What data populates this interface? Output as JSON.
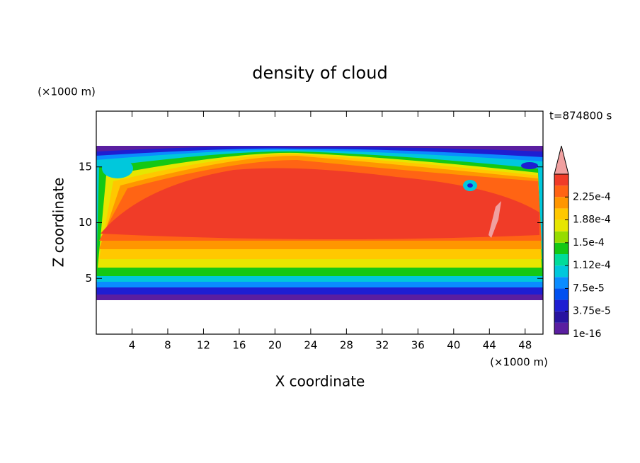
{
  "chart_data": {
    "type": "contour",
    "title": "density of cloud",
    "xlabel": "X coordinate",
    "ylabel": "Z coordinate",
    "xunit": "(×1000 m)",
    "yunit": "(×1000 m)",
    "annotation": "t=874800 s",
    "xlim": [
      0,
      50
    ],
    "xticks": [
      4,
      8,
      12,
      16,
      20,
      24,
      28,
      32,
      36,
      40,
      44,
      48
    ],
    "ylim": [
      0,
      20
    ],
    "yticks": [
      5,
      10,
      15
    ],
    "clim": [
      1e-16,
      0.0002625
    ],
    "cticks": [
      {
        "value": 1e-16,
        "label": "1e-16"
      },
      {
        "value": 3.75e-05,
        "label": "3.75e-5"
      },
      {
        "value": 7.5e-05,
        "label": "7.5e-5"
      },
      {
        "value": 0.0001125,
        "label": "1.12e-4"
      },
      {
        "value": 0.00015,
        "label": "1.5e-4"
      },
      {
        "value": 0.0001875,
        "label": "1.88e-4"
      },
      {
        "value": 0.000225,
        "label": "2.25e-4"
      }
    ],
    "colors": [
      "#5a1ea0",
      "#2814a0",
      "#1e1ed2",
      "#0050f0",
      "#0a8cff",
      "#00c8dc",
      "#00dc9a",
      "#14c814",
      "#96dc00",
      "#e6e600",
      "#ffc800",
      "#ff9600",
      "#ff6414",
      "#f03c28"
    ],
    "extend_color": "#f0a0a0"
  }
}
